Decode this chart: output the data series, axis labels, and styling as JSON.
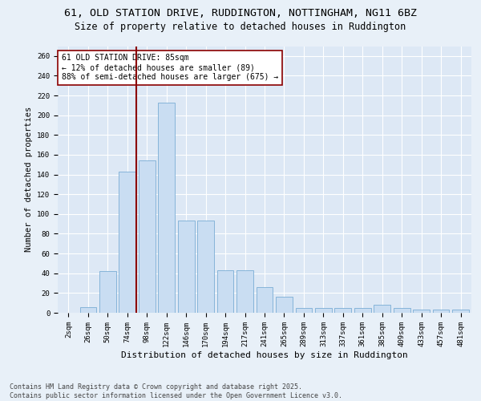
{
  "title1": "61, OLD STATION DRIVE, RUDDINGTON, NOTTINGHAM, NG11 6BZ",
  "title2": "Size of property relative to detached houses in Ruddington",
  "xlabel": "Distribution of detached houses by size in Ruddington",
  "ylabel": "Number of detached properties",
  "bar_color": "#c9ddf2",
  "bar_edge_color": "#7aadd4",
  "background_color": "#dde8f5",
  "grid_color": "#ffffff",
  "categories": [
    "2sqm",
    "26sqm",
    "50sqm",
    "74sqm",
    "98sqm",
    "122sqm",
    "146sqm",
    "170sqm",
    "194sqm",
    "217sqm",
    "241sqm",
    "265sqm",
    "289sqm",
    "313sqm",
    "337sqm",
    "361sqm",
    "385sqm",
    "409sqm",
    "433sqm",
    "457sqm",
    "481sqm"
  ],
  "values": [
    0,
    6,
    42,
    143,
    154,
    213,
    93,
    93,
    43,
    43,
    26,
    16,
    5,
    5,
    5,
    5,
    8,
    5,
    3,
    3,
    3
  ],
  "vline_color": "#8b0000",
  "annotation_text": "61 OLD STATION DRIVE: 85sqm\n← 12% of detached houses are smaller (89)\n88% of semi-detached houses are larger (675) →",
  "ylim": [
    0,
    270
  ],
  "yticks": [
    0,
    20,
    40,
    60,
    80,
    100,
    120,
    140,
    160,
    180,
    200,
    220,
    240,
    260
  ],
  "footnote": "Contains HM Land Registry data © Crown copyright and database right 2025.\nContains public sector information licensed under the Open Government Licence v3.0.",
  "title1_fontsize": 9.5,
  "title2_fontsize": 8.5,
  "xlabel_fontsize": 8,
  "ylabel_fontsize": 7.5,
  "tick_fontsize": 6.5,
  "annotation_fontsize": 7,
  "footnote_fontsize": 6
}
